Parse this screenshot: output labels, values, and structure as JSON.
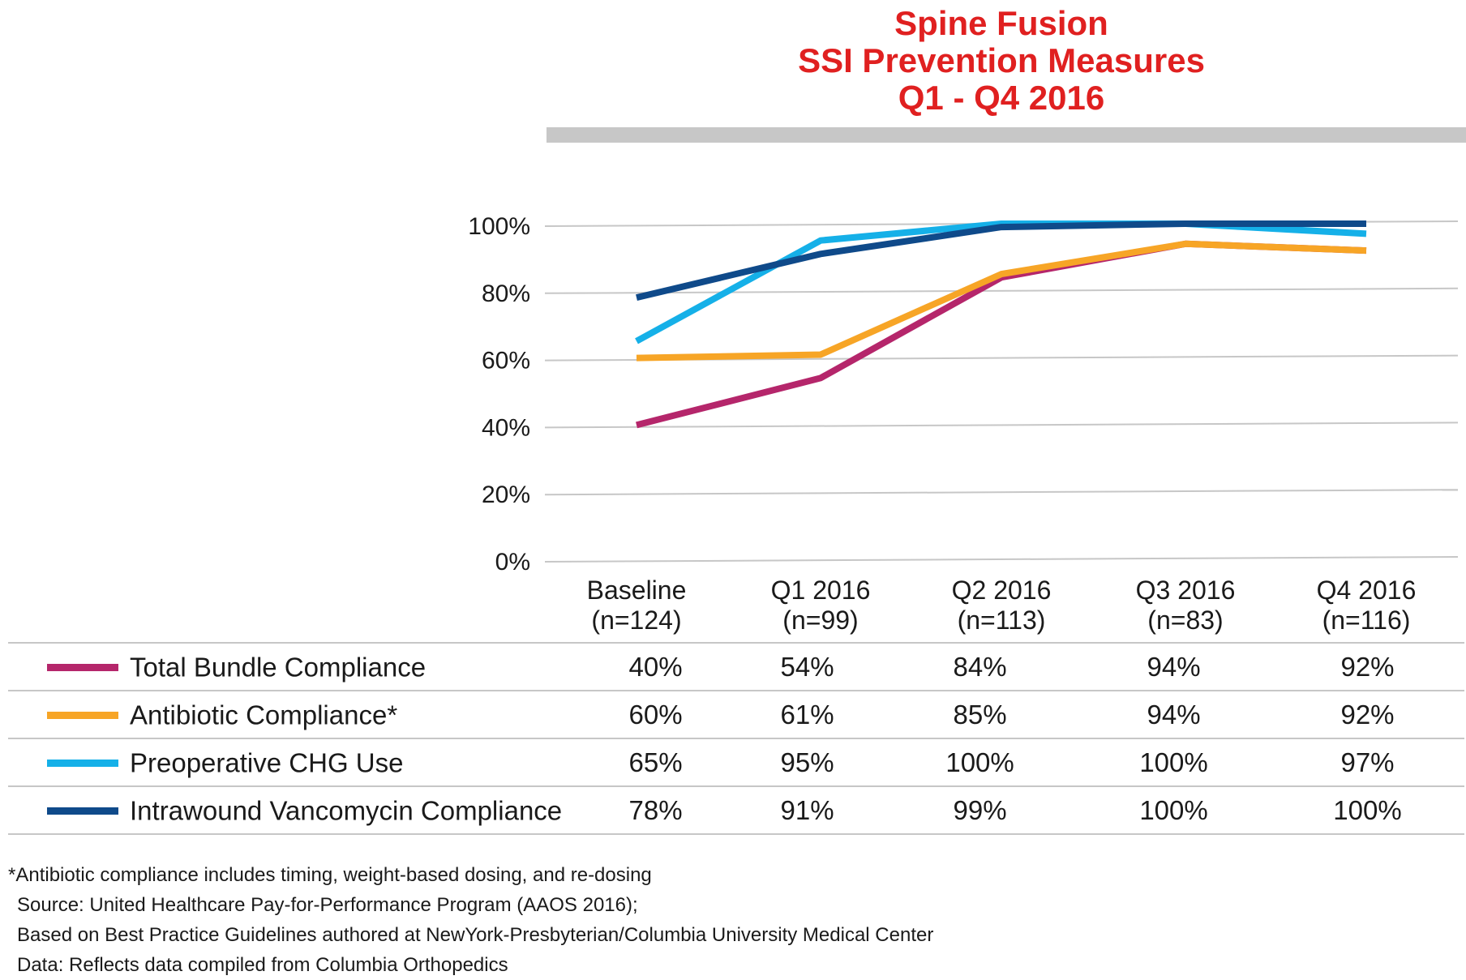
{
  "title": {
    "line1": "Spine Fusion",
    "line2": "SSI Prevention Measures",
    "line3": "Q1 - Q4 2016"
  },
  "chart_data": {
    "type": "line",
    "title": "Spine Fusion SSI Prevention Measures Q1 - Q4 2016",
    "xlabel": "",
    "ylabel": "",
    "ylim": [
      0,
      100
    ],
    "yticks": [
      "0%",
      "20%",
      "40%",
      "60%",
      "80%",
      "100%"
    ],
    "yticks_values": [
      0,
      20,
      40,
      60,
      80,
      100
    ],
    "grid": true,
    "categories": [
      {
        "line1": "Baseline",
        "line2": "(n=124)"
      },
      {
        "line1": "Q1 2016",
        "line2": "(n=99)"
      },
      {
        "line1": "Q2 2016",
        "line2": "(n=113)"
      },
      {
        "line1": "Q3 2016",
        "line2": "(n=83)"
      },
      {
        "line1": "Q4 2016",
        "line2": "(n=116)"
      }
    ],
    "series": [
      {
        "name": "Total Bundle Compliance",
        "color": "#b5266b",
        "values": [
          40,
          54,
          84,
          94,
          92
        ],
        "labels": [
          "40%",
          "54%",
          "84%",
          "94%",
          "92%"
        ]
      },
      {
        "name": "Antibiotic Compliance*",
        "color": "#f7a526",
        "values": [
          60,
          61,
          85,
          94,
          92
        ],
        "labels": [
          "60%",
          "61%",
          "85%",
          "94%",
          "92%"
        ]
      },
      {
        "name": "Preoperative CHG Use",
        "color": "#15b0e8",
        "values": [
          65,
          95,
          100,
          100,
          97
        ],
        "labels": [
          "65%",
          "95%",
          "100%",
          "100%",
          "97%"
        ]
      },
      {
        "name": "Intrawound Vancomycin Compliance",
        "color": "#0f4a8a",
        "values": [
          78,
          91,
          99,
          100,
          100
        ],
        "labels": [
          "78%",
          "91%",
          "99%",
          "100%",
          "100%"
        ]
      }
    ]
  },
  "footnotes": {
    "asterisk": "*Antibiotic compliance includes timing, weight-based dosing, and re-dosing",
    "source1": "Source: United Healthcare Pay-for-Performance Program (AAOS 2016);",
    "source2": "Based on Best Practice Guidelines authored at NewYork-Presbyterian/Columbia University Medical Center",
    "data": "Data: Reflects data compiled from Columbia Orthopedics"
  }
}
